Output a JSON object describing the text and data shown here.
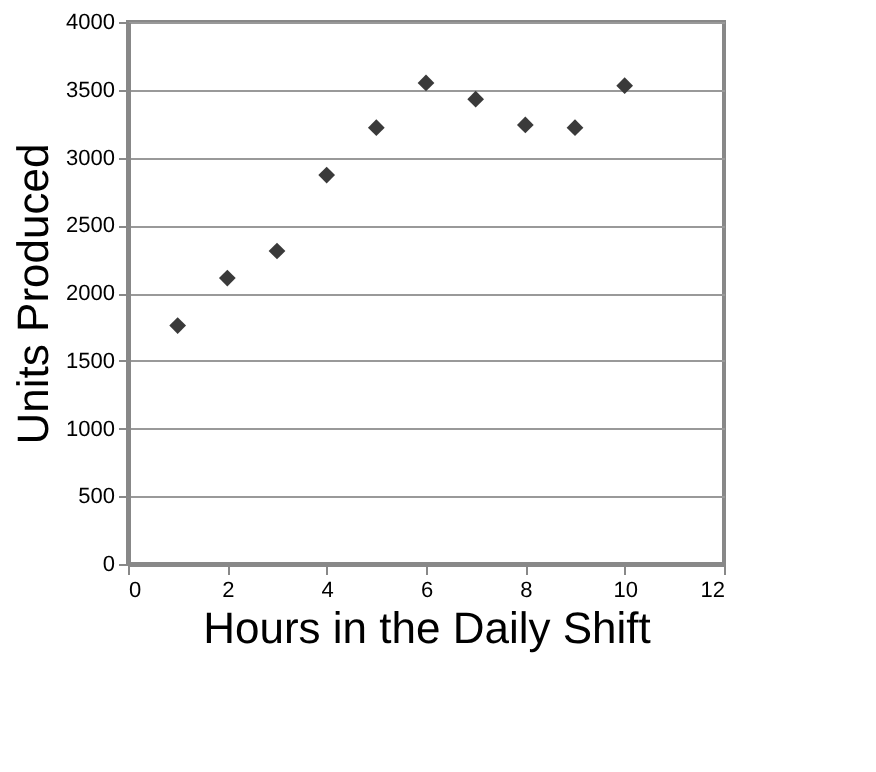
{
  "chart_data": {
    "type": "scatter",
    "xlabel": "Hours in the Daily Shift",
    "ylabel": "Units Produced",
    "x": [
      1,
      2,
      3,
      4,
      5,
      6,
      7,
      8,
      9,
      10
    ],
    "series": [
      {
        "color": "#3a3a3a",
        "values": [
          1760,
          2110,
          2310,
          2870,
          3220,
          3550,
          3430,
          3240,
          3220,
          3530
        ]
      }
    ],
    "xlim": [
      0,
      12
    ],
    "xticks": [
      0,
      2,
      4,
      6,
      8,
      10,
      12
    ],
    "ylim": [
      0,
      4000
    ],
    "yticks": [
      0,
      500,
      1000,
      1500,
      2000,
      2500,
      3000,
      3500,
      4000
    ],
    "grid": "y",
    "marker": "diamond",
    "legend": false
  }
}
